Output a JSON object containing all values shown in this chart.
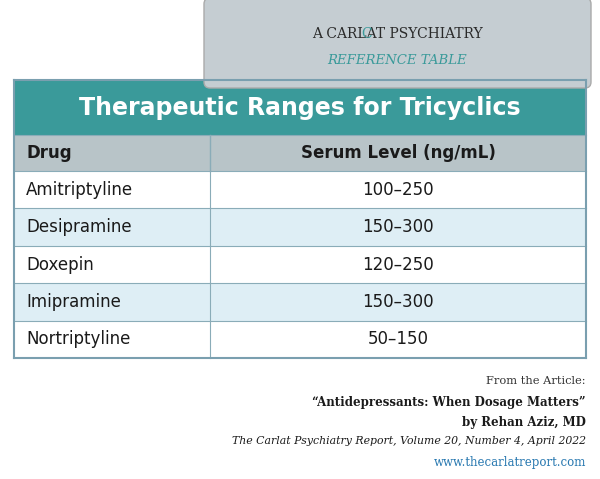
{
  "title": "Therapeutic Ranges for Tricyclics",
  "header_bg": "#3a9a9a",
  "header_text_color": "#ffffff",
  "col_header_bg": "#b8c4c8",
  "col_header_text_color": "#1a1a1a",
  "col_headers": [
    "Drug",
    "Serum Level (ng/mL)"
  ],
  "rows": [
    [
      "Amitriptyline",
      "100–250"
    ],
    [
      "Desipramine",
      "150–300"
    ],
    [
      "Doxepin",
      "120–250"
    ],
    [
      "Imipramine",
      "150–300"
    ],
    [
      "Nortriptyline",
      "50–150"
    ]
  ],
  "row_colors": [
    "#ffffff",
    "#deeef5",
    "#ffffff",
    "#deeef5",
    "#ffffff"
  ],
  "row_text_color": "#1a1a1a",
  "grid_color": "#8aacb8",
  "bg_color": "#ffffff",
  "badge_bg": "#c5cdd2",
  "badge_teal": "#3a9a9a",
  "badge_dark": "#2a2a2a",
  "outer_border_color": "#7a9faf",
  "figsize": [
    6.0,
    4.79
  ],
  "dpi": 100
}
